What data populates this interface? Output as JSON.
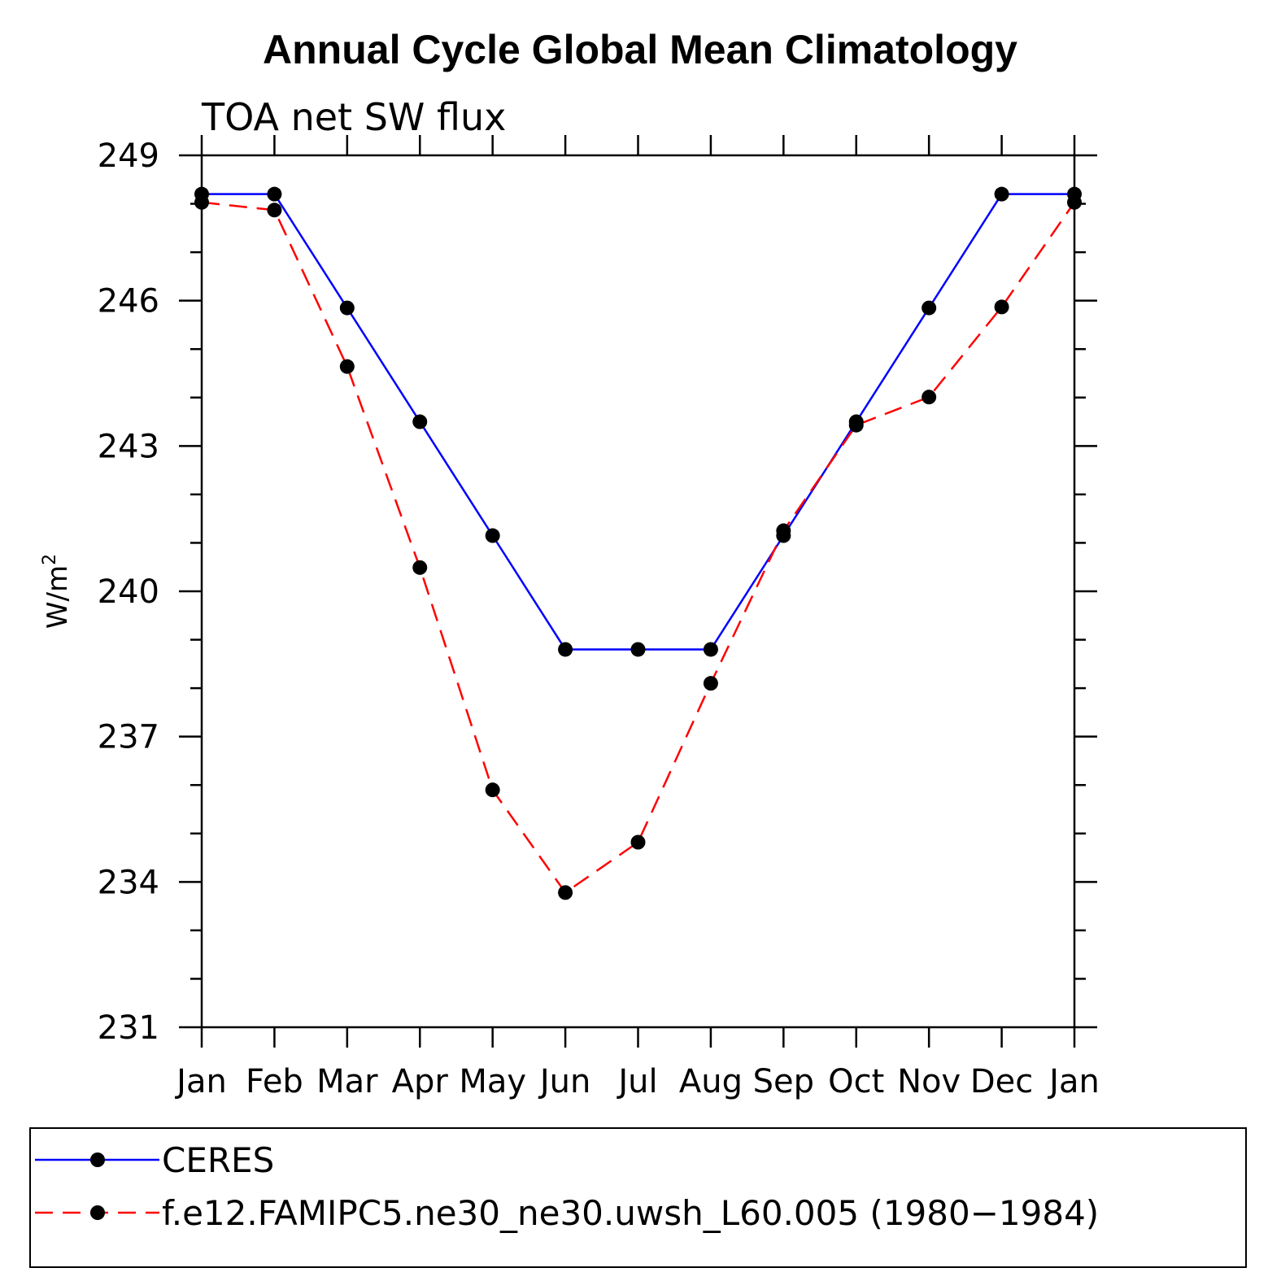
{
  "chart_data": {
    "type": "line",
    "title": "Annual Cycle Global Mean Climatology",
    "subtitle": "TOA net SW flux",
    "ylabel": "W/m",
    "ylabel_sup": "2",
    "xlabel": "",
    "categories": [
      "Jan",
      "Feb",
      "Mar",
      "Apr",
      "May",
      "Jun",
      "Jul",
      "Aug",
      "Sep",
      "Oct",
      "Nov",
      "Dec",
      "Jan"
    ],
    "ylim": [
      231,
      249
    ],
    "yticks": [
      231,
      234,
      237,
      240,
      243,
      246,
      249
    ],
    "grid": false,
    "legend_position": "bottom",
    "series": [
      {
        "name": "CERES",
        "color": "#0000ff",
        "style": "solid",
        "values": [
          248.2,
          248.2,
          245.85,
          243.5,
          241.15,
          238.8,
          238.8,
          238.8,
          241.15,
          243.5,
          245.85,
          248.2,
          248.2
        ]
      },
      {
        "name": "f.e12.FAMIPC5.ne30_ne30.uwsh_L60.005 (1980−1984)",
        "color": "#ff0000",
        "style": "dashed",
        "values": [
          248.03,
          247.87,
          244.64,
          240.49,
          235.9,
          233.78,
          234.82,
          238.1,
          241.25,
          243.43,
          244.01,
          245.87,
          248.03
        ]
      }
    ]
  }
}
